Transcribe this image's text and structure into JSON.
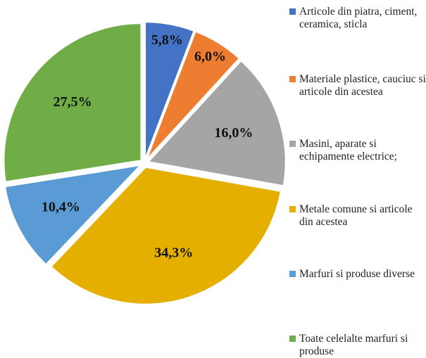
{
  "chart_data": {
    "type": "pie",
    "slices": [
      {
        "label": "Articole din piatra, ciment, ceramica, sticla",
        "value": 5.8,
        "value_label": "5,8%",
        "color": "#4472C4"
      },
      {
        "label": "Materiale plastice, cauciuc si articole din acestea",
        "value": 6.0,
        "value_label": "6,0%",
        "color": "#ED7D31"
      },
      {
        "label": "Masini, aparate si echipamente electrice;",
        "value": 16.0,
        "value_label": "16,0%",
        "color": "#A5A5A5"
      },
      {
        "label": "Metale comune si articole din acestea",
        "value": 34.3,
        "value_label": "34,3%",
        "color": "#E5AF00"
      },
      {
        "label": "Marfuri si produse diverse",
        "value": 10.4,
        "value_label": "10,4%",
        "color": "#5B9BD5"
      },
      {
        "label": "Toate celelalte marfuri si produse",
        "value": 27.5,
        "value_label": "27,5%",
        "color": "#70AD47"
      }
    ],
    "legend_position": "right",
    "start_angle": "12 o'clock, clockwise"
  }
}
